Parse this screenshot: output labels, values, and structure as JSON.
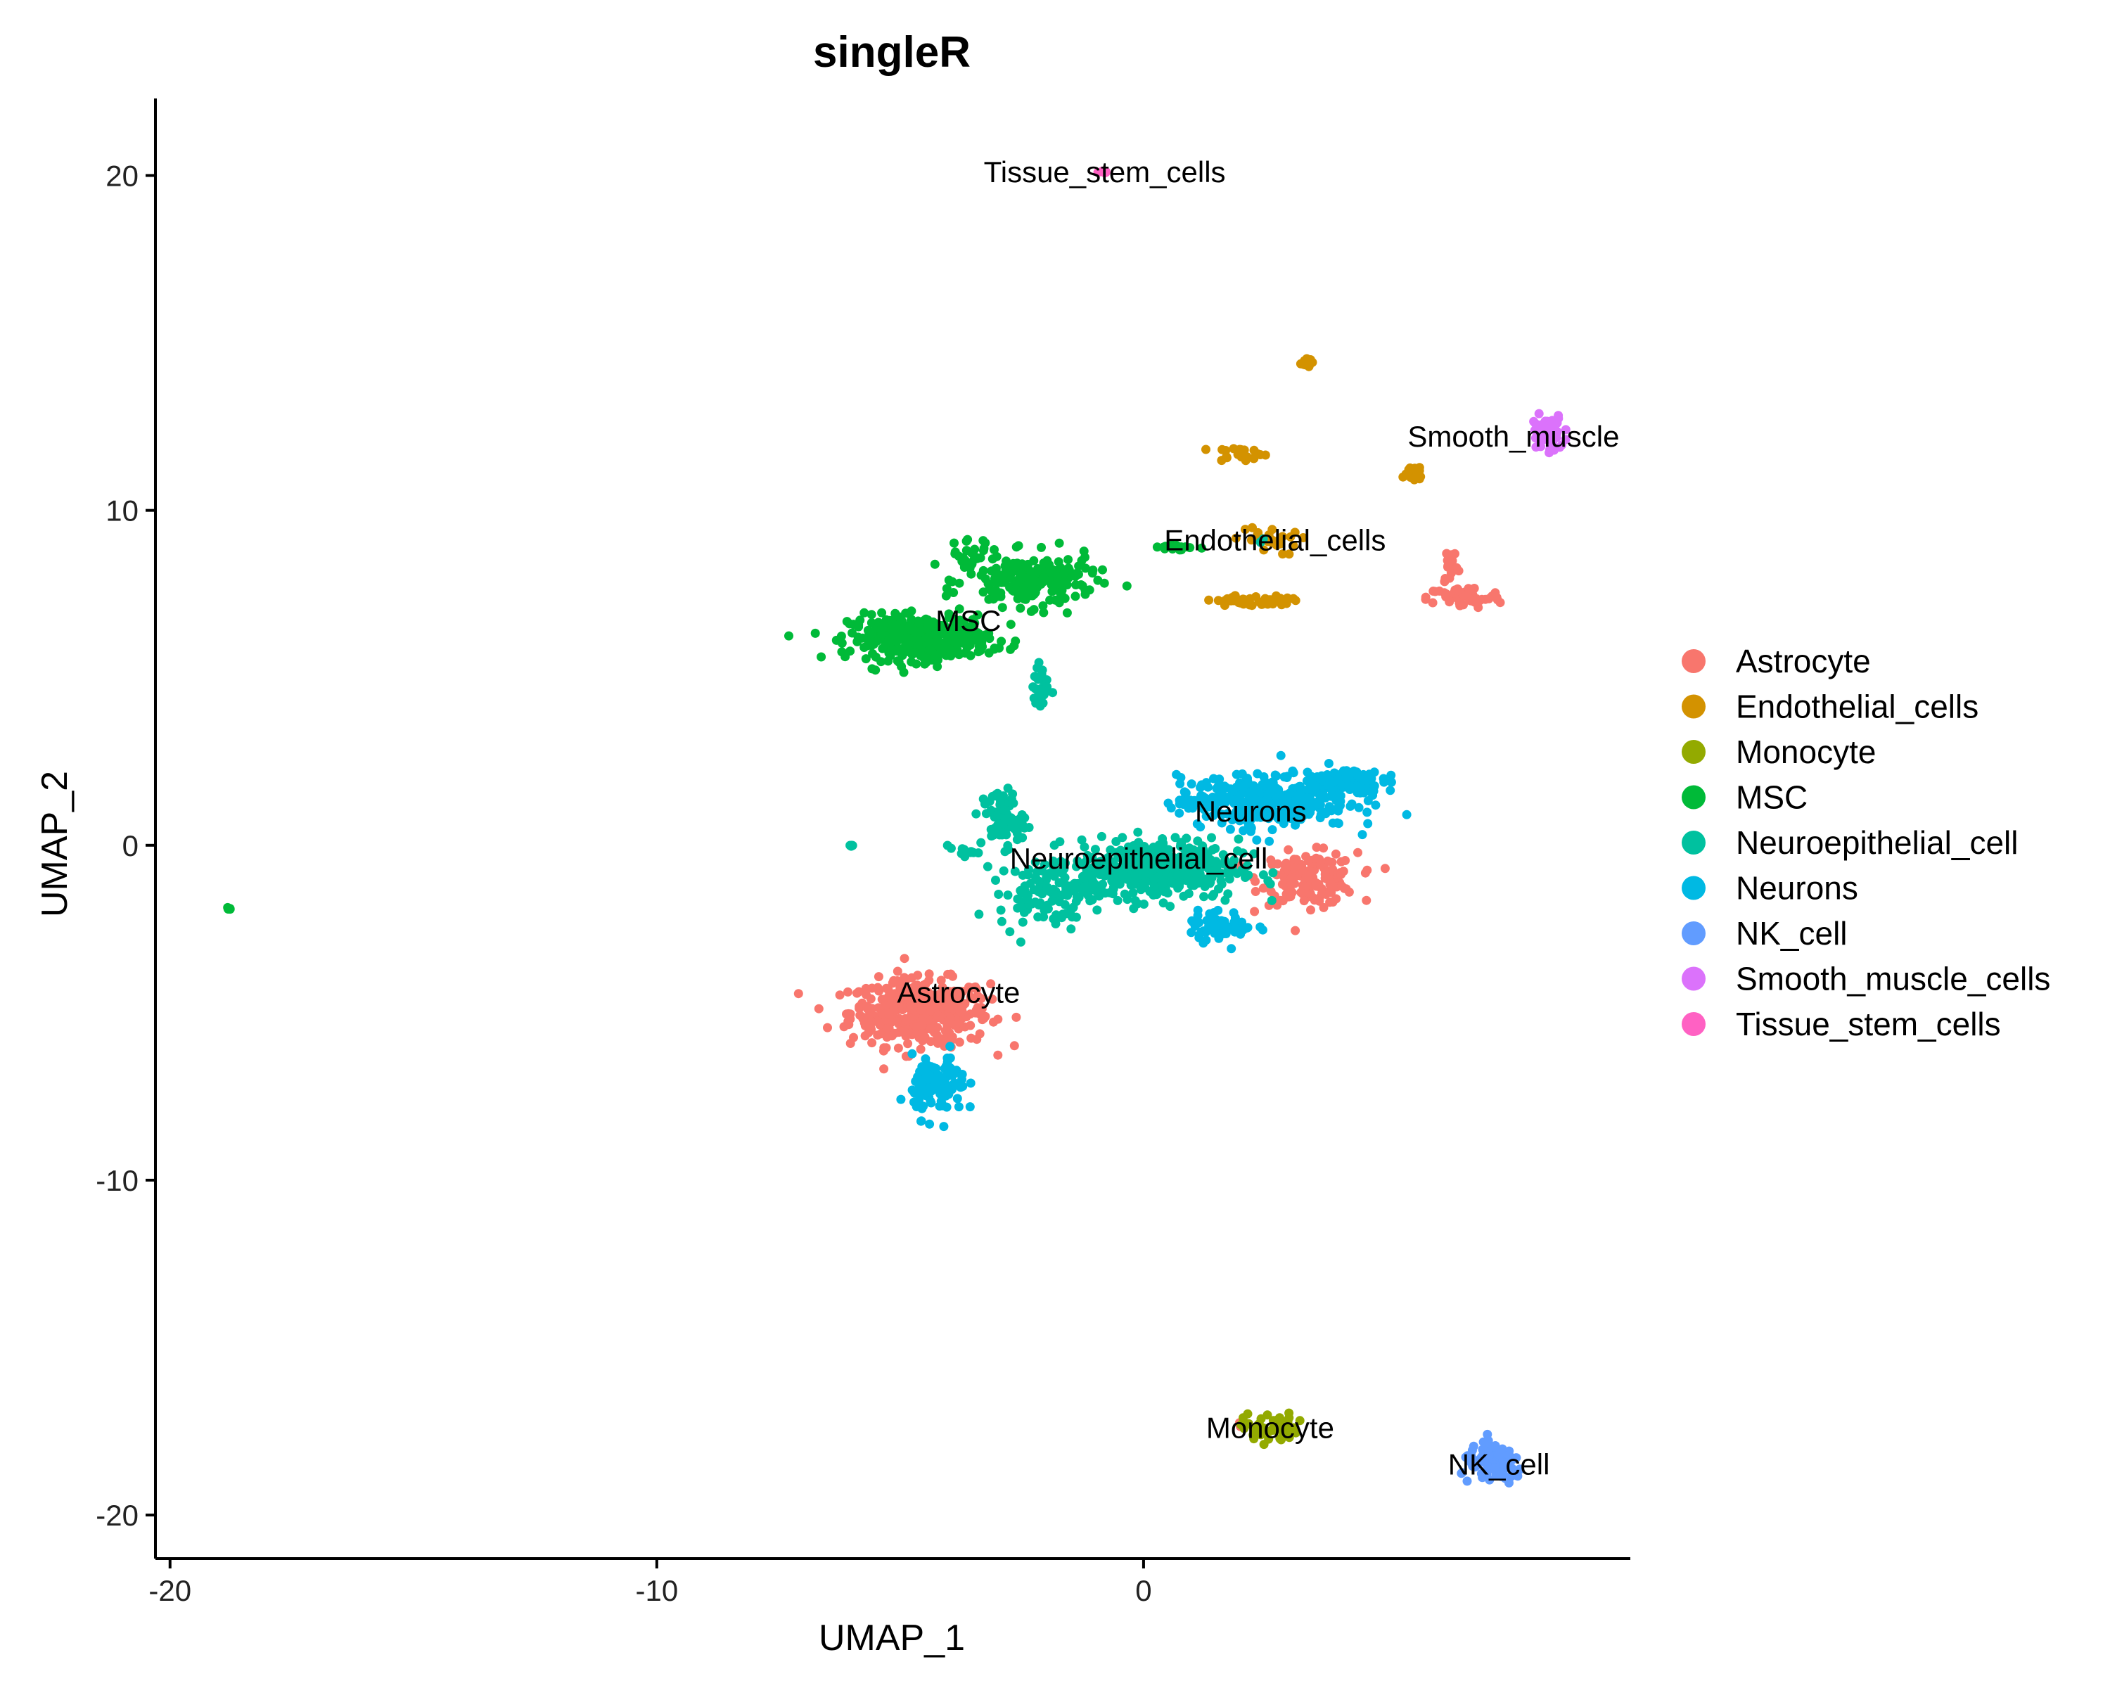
{
  "chart_data": {
    "type": "scatter",
    "title": "singleR",
    "xlabel": "UMAP_1",
    "ylabel": "UMAP_2",
    "xlim": [
      -20.3,
      10.0
    ],
    "ylim": [
      -21.3,
      22.3
    ],
    "xticks": [
      -20,
      -10,
      0
    ],
    "yticks": [
      -20,
      -10,
      0,
      10,
      20
    ],
    "grid": false,
    "legend": "right",
    "series": [
      {
        "name": "Astrocyte",
        "color": "#F8766D",
        "clusters": [
          {
            "cx": -4.6,
            "cy": -5.0,
            "rx": 1.3,
            "ry": 0.9,
            "n": 420
          },
          {
            "cx": 3.4,
            "cy": -1.0,
            "rx": 0.9,
            "ry": 0.7,
            "n": 160
          },
          {
            "cx": 6.6,
            "cy": 7.4,
            "rx": 0.7,
            "ry": 0.3,
            "n": 60
          },
          {
            "cx": 6.3,
            "cy": 8.4,
            "rx": 0.15,
            "ry": 0.6,
            "n": 18
          },
          {
            "cx": 2.0,
            "cy": -17.2,
            "rx": 0.1,
            "ry": 0.1,
            "n": 3
          }
        ]
      },
      {
        "name": "Endothelial_cells",
        "color": "#D39200",
        "clusters": [
          {
            "cx": 1.9,
            "cy": 7.3,
            "rx": 0.35,
            "ry": 0.15,
            "n": 26
          },
          {
            "cx": 2.6,
            "cy": 7.3,
            "rx": 0.4,
            "ry": 0.15,
            "n": 28
          },
          {
            "cx": 2.0,
            "cy": 11.7,
            "rx": 0.5,
            "ry": 0.2,
            "n": 22
          },
          {
            "cx": 5.5,
            "cy": 11.1,
            "rx": 0.3,
            "ry": 0.3,
            "n": 16
          },
          {
            "cx": 3.3,
            "cy": 14.4,
            "rx": 0.15,
            "ry": 0.1,
            "n": 12
          },
          {
            "cx": 2.5,
            "cy": 9.1,
            "rx": 0.6,
            "ry": 0.4,
            "n": 26
          }
        ]
      },
      {
        "name": "Monocyte",
        "color": "#93AA00",
        "clusters": [
          {
            "cx": 2.6,
            "cy": -17.4,
            "rx": 0.5,
            "ry": 0.4,
            "n": 55
          }
        ]
      },
      {
        "name": "MSC",
        "color": "#00BA38",
        "clusters": [
          {
            "cx": -4.6,
            "cy": 6.2,
            "rx": 1.3,
            "ry": 0.6,
            "n": 380
          },
          {
            "cx": -2.3,
            "cy": 7.9,
            "rx": 1.2,
            "ry": 0.7,
            "n": 200
          },
          {
            "cx": -3.6,
            "cy": 8.7,
            "rx": 0.3,
            "ry": 0.5,
            "n": 25
          },
          {
            "cx": 0.7,
            "cy": 8.9,
            "rx": 0.6,
            "ry": 0.1,
            "n": 16
          },
          {
            "cx": -18.8,
            "cy": -1.9,
            "rx": 0.05,
            "ry": 0.05,
            "n": 4
          }
        ]
      },
      {
        "name": "Neuroepithelial_cell",
        "color": "#00C19F",
        "clusters": [
          {
            "cx": 0.3,
            "cy": -0.7,
            "rx": 1.5,
            "ry": 0.8,
            "n": 460
          },
          {
            "cx": -2.0,
            "cy": -1.4,
            "rx": 0.9,
            "ry": 0.9,
            "n": 110
          },
          {
            "cx": -2.9,
            "cy": 0.8,
            "rx": 0.4,
            "ry": 0.8,
            "n": 70
          },
          {
            "cx": -3.7,
            "cy": -0.2,
            "rx": 0.3,
            "ry": 0.1,
            "n": 14
          },
          {
            "cx": -2.1,
            "cy": 4.7,
            "rx": 0.15,
            "ry": 0.6,
            "n": 24
          },
          {
            "cx": -6.0,
            "cy": 0.0,
            "rx": 0.05,
            "ry": 0.05,
            "n": 4
          },
          {
            "cx": 2.4,
            "cy": 9.1,
            "rx": 0.1,
            "ry": 0.1,
            "n": 3
          }
        ]
      },
      {
        "name": "Neurons",
        "color": "#00B9E3",
        "clusters": [
          {
            "cx": 2.5,
            "cy": 1.3,
            "rx": 1.6,
            "ry": 0.7,
            "n": 360
          },
          {
            "cx": 4.0,
            "cy": 1.9,
            "rx": 0.8,
            "ry": 0.4,
            "n": 120
          },
          {
            "cx": 1.6,
            "cy": -2.4,
            "rx": 0.6,
            "ry": 0.4,
            "n": 60
          },
          {
            "cx": -4.2,
            "cy": -7.2,
            "rx": 0.5,
            "ry": 0.8,
            "n": 110
          }
        ]
      },
      {
        "name": "NK_cell",
        "color": "#619CFF",
        "clusters": [
          {
            "cx": 7.2,
            "cy": -18.5,
            "rx": 0.6,
            "ry": 0.5,
            "n": 110
          }
        ]
      },
      {
        "name": "Smooth_muscle_cells",
        "color": "#DB72FB",
        "clusters": [
          {
            "cx": 8.3,
            "cy": 12.3,
            "rx": 0.3,
            "ry": 0.5,
            "n": 60
          }
        ]
      },
      {
        "name": "Tissue_stem_cells",
        "color": "#FF61C3",
        "clusters": [
          {
            "cx": -0.8,
            "cy": 20.1,
            "rx": 0.1,
            "ry": 0.05,
            "n": 6
          }
        ]
      }
    ],
    "annotations": [
      {
        "text": "Tissue_stem_cells",
        "x": -0.8,
        "y": 20.1
      },
      {
        "text": "Smooth_muscle",
        "x": 7.6,
        "y": 12.2
      },
      {
        "text": "Endothelial_cells",
        "x": 2.7,
        "y": 9.1
      },
      {
        "text": "MSC",
        "x": -3.6,
        "y": 6.7
      },
      {
        "text": "Neurons",
        "x": 2.2,
        "y": 1.0
      },
      {
        "text": "Neuroepithelial_cell",
        "x": -0.1,
        "y": -0.4
      },
      {
        "text": "Astrocyte",
        "x": -3.8,
        "y": -4.4
      },
      {
        "text": "Monocyte",
        "x": 2.6,
        "y": -17.4
      },
      {
        "text": "NK_cell",
        "x": 7.3,
        "y": -18.5
      }
    ]
  }
}
